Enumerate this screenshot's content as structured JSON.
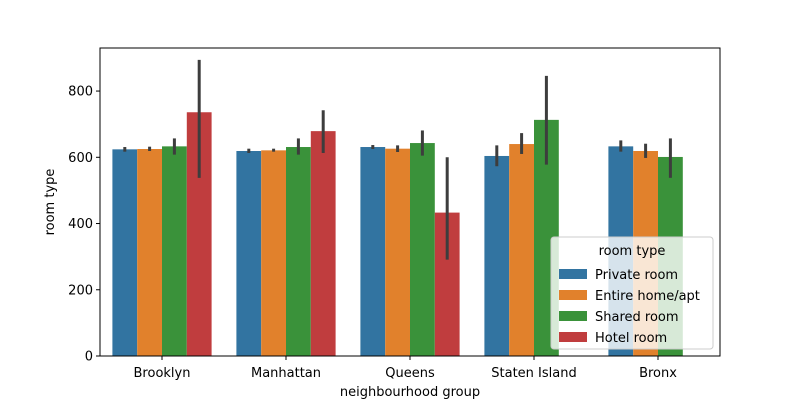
{
  "chart_data": {
    "type": "bar",
    "title": "",
    "xlabel": "neighbourhood group",
    "ylabel": "room type",
    "ylim": [
      0,
      930
    ],
    "yticks": [
      0,
      200,
      400,
      600,
      800
    ],
    "categories": [
      "Brooklyn",
      "Manhattan",
      "Queens",
      "Staten Island",
      "Bronx"
    ],
    "series": [
      {
        "name": "Private room",
        "color": "#3274a1",
        "values": [
          624,
          619,
          631,
          604,
          633
        ],
        "error_low": [
          617,
          613,
          625,
          573,
          617
        ],
        "error_high": [
          631,
          626,
          637,
          636,
          651
        ]
      },
      {
        "name": "Entire home/apt",
        "color": "#e1812c",
        "values": [
          625,
          621,
          626,
          640,
          619
        ],
        "error_low": [
          619,
          617,
          616,
          610,
          598
        ],
        "error_high": [
          632,
          626,
          636,
          673,
          641
        ]
      },
      {
        "name": "Shared room",
        "color": "#3a923a",
        "values": [
          633,
          631,
          643,
          713,
          601
        ],
        "error_low": [
          608,
          608,
          605,
          578,
          538
        ],
        "error_high": [
          657,
          657,
          681,
          846,
          657
        ]
      },
      {
        "name": "Hotel room",
        "color": "#c03d3e",
        "values": [
          736,
          679,
          433,
          null,
          null
        ],
        "error_low": [
          538,
          613,
          291,
          null,
          null
        ],
        "error_high": [
          894,
          742,
          600,
          null,
          null
        ]
      }
    ],
    "legend": {
      "title": "room type",
      "placement": "lower-right"
    },
    "grid": false
  }
}
